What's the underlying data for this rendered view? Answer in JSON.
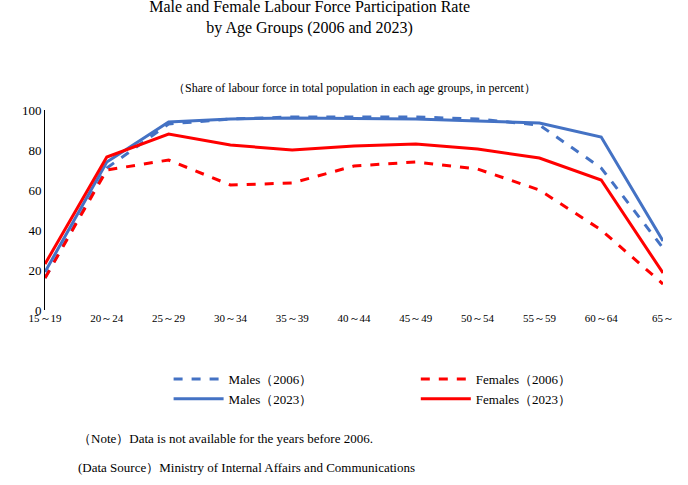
{
  "chart_data": {
    "type": "line",
    "title": [
      "Male and Female Labour Force Participation Rate",
      "by Age Groups (2006 and 2023)"
    ],
    "subtitle": "（Share of labour force in total population in each age groups, in percent）",
    "categories": [
      "15～19",
      "20～24",
      "25～29",
      "30～34",
      "35～39",
      "40～44",
      "45～49",
      "50～54",
      "55～59",
      "60～64",
      "65～"
    ],
    "series": [
      {
        "name": "Males（2006）",
        "color": "#4472C4",
        "line_style": "dashed",
        "values": [
          16,
          71,
          93,
          95.5,
          96.5,
          96.5,
          96.5,
          95.5,
          92.5,
          71,
          31
        ]
      },
      {
        "name": "Females（2006）",
        "color": "#FF0000",
        "line_style": "dashed",
        "values": [
          16,
          70,
          75,
          62.5,
          63.5,
          72,
          74,
          70.5,
          60,
          40,
          13
        ]
      },
      {
        "name": "Males（2023）",
        "color": "#4472C4",
        "line_style": "solid",
        "values": [
          19,
          74,
          94,
          95.5,
          96,
          95.7,
          95.5,
          94.5,
          93.5,
          86.5,
          34.5
        ]
      },
      {
        "name": "Females（2023）",
        "color": "#FF0000",
        "line_style": "solid",
        "values": [
          23,
          76.5,
          88,
          82.5,
          80,
          82,
          83,
          80.5,
          76,
          65,
          18.5
        ]
      }
    ],
    "ylim": [
      0,
      100
    ],
    "yticks": [
      0,
      20,
      40,
      60,
      80,
      100
    ],
    "grid": false,
    "legend": "bottom",
    "annotations": [
      "（Note）Data is not available for the years before 2006.",
      "(Data Source）Ministry of Internal Affairs and Communications"
    ]
  }
}
